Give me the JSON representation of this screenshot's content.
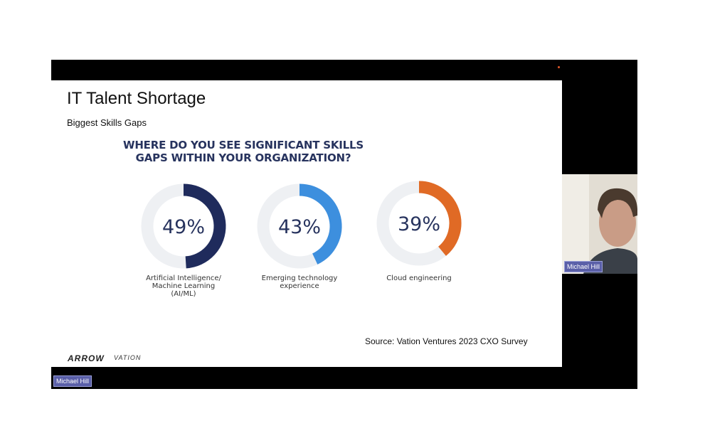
{
  "slide": {
    "title": "IT Talent Shortage",
    "subtitle": "Biggest Skills Gaps",
    "question_line1": "WHERE DO YOU SEE SIGNIFICANT SKILLS",
    "question_line2": "GAPS WITHIN YOUR ORGANIZATION?",
    "source": "Source: Vation Ventures 2023 CXO Survey",
    "logo_left": "ARROW",
    "logo_right": "VATION"
  },
  "chart_data": {
    "type": "pie",
    "series": [
      {
        "label": "49%",
        "value": 49,
        "category_lines": [
          "Artificial Intelligence/",
          "Machine Learning",
          "(AI/ML)"
        ],
        "color": "#1f2b5c"
      },
      {
        "label": "43%",
        "value": 43,
        "category_lines": [
          "Emerging technology",
          "experience"
        ],
        "color": "#3d8fde"
      },
      {
        "label": "39%",
        "value": 39,
        "category_lines": [
          "Cloud engineering"
        ],
        "color": "#e06a25"
      }
    ],
    "track_color": "#eef0f3"
  },
  "participants": {
    "main_name": "Michael Hill",
    "camera_name": "Michael Hill"
  },
  "colors": {
    "background": "#000000",
    "name_tag": "#5a5fa8",
    "recording_dot": "#e0582a"
  }
}
